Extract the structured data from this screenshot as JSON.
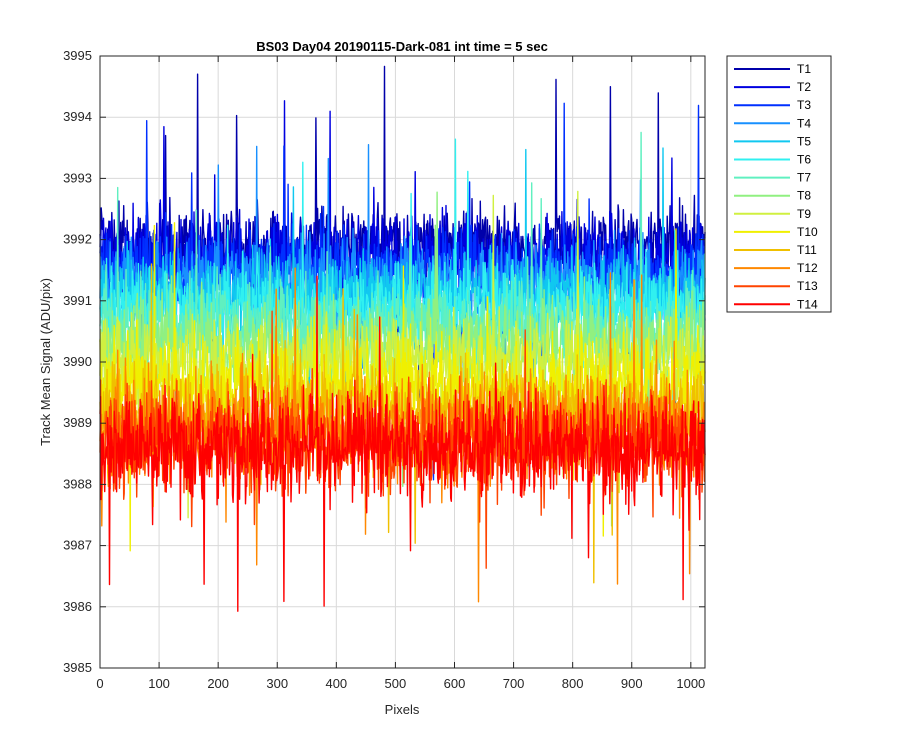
{
  "chart_data": {
    "type": "line",
    "title": "BS03 Day04 20190115-Dark-081 int time = 5 sec",
    "xlabel": "Pixels",
    "ylabel": "Track Mean Signal (ADU/pix)",
    "xlim": [
      0,
      1024
    ],
    "ylim": [
      3985,
      3995
    ],
    "x_ticks": [
      0,
      100,
      200,
      300,
      400,
      500,
      600,
      700,
      800,
      900,
      1000
    ],
    "y_ticks": [
      3985,
      3986,
      3987,
      3988,
      3989,
      3990,
      3991,
      3992,
      3993,
      3994,
      3995
    ],
    "x_tick_labels": [
      "0",
      "100",
      "200",
      "300",
      "400",
      "500",
      "600",
      "700",
      "800",
      "900",
      "1000"
    ],
    "y_tick_labels": [
      "3985",
      "3986",
      "3987",
      "3988",
      "3989",
      "3990",
      "3991",
      "3992",
      "3993",
      "3994",
      "3995"
    ],
    "grid": true,
    "legend_position": "outside-top-right",
    "points_per_series": 1024,
    "series": [
      {
        "name": "T1",
        "color": "#0000aa",
        "mean": 3991.9,
        "spread": 0.75
      },
      {
        "name": "T2",
        "color": "#0000e0",
        "mean": 3991.7,
        "spread": 0.75
      },
      {
        "name": "T3",
        "color": "#0030ff",
        "mean": 3991.5,
        "spread": 0.75
      },
      {
        "name": "T4",
        "color": "#1890ff",
        "mean": 3991.3,
        "spread": 0.75
      },
      {
        "name": "T5",
        "color": "#10c8f0",
        "mean": 3991.1,
        "spread": 0.75
      },
      {
        "name": "T6",
        "color": "#30f0f0",
        "mean": 3990.9,
        "spread": 0.75
      },
      {
        "name": "T7",
        "color": "#60f0c0",
        "mean": 3990.6,
        "spread": 0.8
      },
      {
        "name": "T8",
        "color": "#90f080",
        "mean": 3990.3,
        "spread": 0.8
      },
      {
        "name": "T9",
        "color": "#d0f040",
        "mean": 3990.0,
        "spread": 0.85
      },
      {
        "name": "T10",
        "color": "#f0f000",
        "mean": 3989.6,
        "spread": 0.9
      },
      {
        "name": "T11",
        "color": "#f0c000",
        "mean": 3989.2,
        "spread": 0.9
      },
      {
        "name": "T12",
        "color": "#ff8800",
        "mean": 3988.9,
        "spread": 0.95
      },
      {
        "name": "T13",
        "color": "#ff4400",
        "mean": 3988.7,
        "spread": 0.95
      },
      {
        "name": "T14",
        "color": "#ff0000",
        "mean": 3988.6,
        "spread": 0.95
      }
    ]
  }
}
